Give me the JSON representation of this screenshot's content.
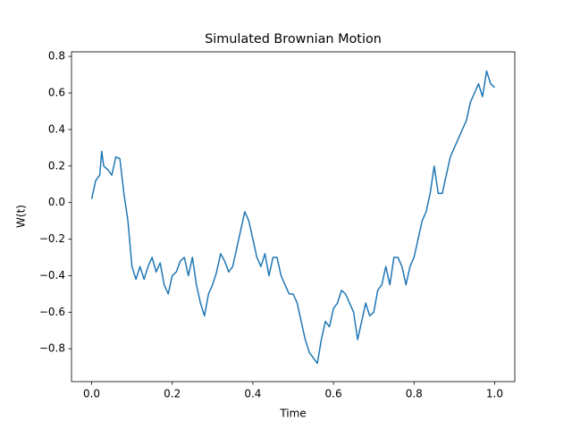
{
  "chart_data": {
    "type": "line",
    "title": "Simulated Brownian Motion",
    "xlabel": "Time",
    "ylabel": "W(t)",
    "x": [
      0,
      0.01,
      0.02,
      0.025,
      0.03,
      0.04,
      0.05,
      0.06,
      0.07,
      0.08,
      0.09,
      0.1,
      0.11,
      0.12,
      0.13,
      0.14,
      0.15,
      0.16,
      0.17,
      0.18,
      0.19,
      0.2,
      0.21,
      0.22,
      0.23,
      0.24,
      0.25,
      0.26,
      0.27,
      0.28,
      0.29,
      0.3,
      0.31,
      0.32,
      0.33,
      0.34,
      0.35,
      0.36,
      0.37,
      0.38,
      0.39,
      0.4,
      0.41,
      0.42,
      0.43,
      0.44,
      0.45,
      0.46,
      0.47,
      0.48,
      0.49,
      0.5,
      0.51,
      0.52,
      0.53,
      0.54,
      0.55,
      0.56,
      0.57,
      0.58,
      0.59,
      0.6,
      0.61,
      0.62,
      0.63,
      0.64,
      0.65,
      0.66,
      0.67,
      0.68,
      0.69,
      0.7,
      0.71,
      0.72,
      0.73,
      0.74,
      0.75,
      0.76,
      0.77,
      0.78,
      0.79,
      0.8,
      0.81,
      0.82,
      0.83,
      0.84,
      0.85,
      0.86,
      0.87,
      0.88,
      0.89,
      0.9,
      0.91,
      0.92,
      0.93,
      0.94,
      0.95,
      0.96,
      0.97,
      0.98,
      0.99,
      1.0
    ],
    "series": [
      {
        "name": "W(t)",
        "color": "#1f77b4",
        "values": [
          0.02,
          0.12,
          0.15,
          0.28,
          0.2,
          0.18,
          0.15,
          0.25,
          0.24,
          0.05,
          -0.1,
          -0.35,
          -0.42,
          -0.35,
          -0.42,
          -0.35,
          -0.3,
          -0.38,
          -0.33,
          -0.45,
          -0.5,
          -0.4,
          -0.38,
          -0.32,
          -0.3,
          -0.4,
          -0.3,
          -0.45,
          -0.55,
          -0.62,
          -0.5,
          -0.45,
          -0.38,
          -0.28,
          -0.32,
          -0.38,
          -0.35,
          -0.25,
          -0.15,
          -0.05,
          -0.1,
          -0.2,
          -0.3,
          -0.35,
          -0.28,
          -0.4,
          -0.3,
          -0.3,
          -0.4,
          -0.45,
          -0.5,
          -0.5,
          -0.55,
          -0.65,
          -0.75,
          -0.82,
          -0.85,
          -0.88,
          -0.75,
          -0.65,
          -0.68,
          -0.58,
          -0.55,
          -0.48,
          -0.5,
          -0.55,
          -0.6,
          -0.75,
          -0.65,
          -0.55,
          -0.62,
          -0.6,
          -0.48,
          -0.45,
          -0.35,
          -0.45,
          -0.3,
          -0.3,
          -0.35,
          -0.45,
          -0.35,
          -0.3,
          -0.2,
          -0.1,
          -0.05,
          0.05,
          0.2,
          0.05,
          0.05,
          0.15,
          0.25,
          0.3,
          0.35,
          0.4,
          0.45,
          0.55,
          0.6,
          0.65,
          0.58,
          0.72,
          0.65,
          0.63
        ]
      }
    ],
    "xlim": [
      -0.05,
      1.05
    ],
    "xticks": [
      {
        "value": 0,
        "label": "0.0"
      },
      0.2,
      0.4,
      0.6,
      0.8,
      {
        "value": 1,
        "label": "1.0"
      }
    ],
    "ylim": [
      -0.98,
      0.825
    ],
    "yticks": [
      {
        "value": -0.8,
        "label": "−0.8"
      },
      {
        "value": -0.6,
        "label": "−0.6"
      },
      {
        "value": -0.4,
        "label": "−0.4"
      },
      {
        "value": -0.2,
        "label": "−0.2"
      },
      {
        "value": 0,
        "label": "0.0"
      },
      0.2,
      0.4,
      0.6,
      0.8
    ],
    "grid": false
  }
}
